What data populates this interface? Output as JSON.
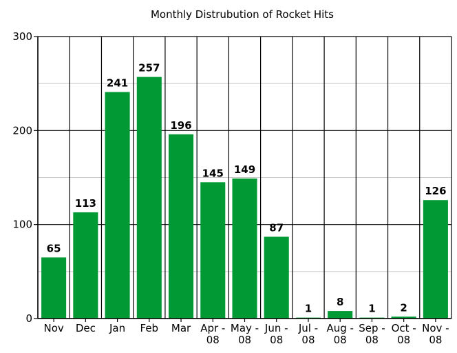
{
  "chart_data": {
    "type": "bar",
    "title": "Monthly Distrubution of Rocket Hits",
    "xlabel": "",
    "ylabel": "",
    "ylim": [
      0,
      300
    ],
    "y_ticks": [
      0,
      100,
      200,
      300
    ],
    "grid": true,
    "bar_color": "#009933",
    "categories": [
      "Nov",
      "Dec",
      "Jan",
      "Feb",
      "Mar",
      "Apr - 08",
      "May - 08",
      "Jun - 08",
      "Jul - 08",
      "Aug - 08",
      "Sep - 08",
      "Oct - 08",
      "Nov - 08"
    ],
    "category_lines": [
      [
        "Nov"
      ],
      [
        "Dec"
      ],
      [
        "Jan"
      ],
      [
        "Feb"
      ],
      [
        "Mar"
      ],
      [
        "Apr -",
        "08"
      ],
      [
        "May -",
        "08"
      ],
      [
        "Jun -",
        "08"
      ],
      [
        "Jul -",
        "08"
      ],
      [
        "Aug -",
        "08"
      ],
      [
        "Sep -",
        "08"
      ],
      [
        "Oct -",
        "08"
      ],
      [
        "Nov -",
        "08"
      ]
    ],
    "values": [
      65,
      113,
      241,
      257,
      196,
      145,
      149,
      87,
      1,
      8,
      1,
      2,
      126
    ],
    "data_labels": [
      "65",
      "113",
      "241",
      "257",
      "196",
      "145",
      "149",
      "87",
      "1",
      "8",
      "1",
      "2",
      "126"
    ]
  }
}
